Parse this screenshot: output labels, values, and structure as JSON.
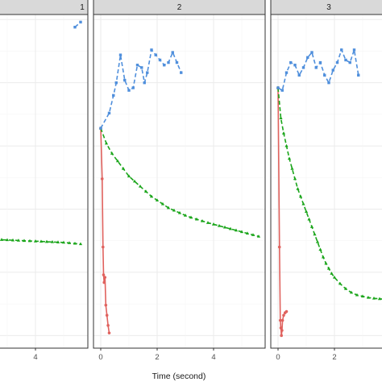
{
  "chart_data": {
    "type": "line",
    "xlabel": "Time (second)",
    "ylabel": "",
    "xlim_note": "shared x scale, each facet clipped",
    "grid": true,
    "legend": "none",
    "colors": {
      "red": "#e0625e",
      "green": "#1aa51a",
      "blue": "#4f8fdc"
    },
    "facets": [
      {
        "label": "1",
        "x_ticks": [
          4
        ],
        "series": [
          {
            "color": "#e0625e",
            "dash": "solid",
            "marker": "dot",
            "points": []
          },
          {
            "color": "#1aa51a",
            "dash": "dashed",
            "marker": "triangle",
            "points": [
              [
                2.6,
                0.38
              ],
              [
                2.8,
                0.379
              ],
              [
                3.0,
                0.378
              ],
              [
                3.2,
                0.377
              ],
              [
                3.4,
                0.376
              ],
              [
                3.6,
                0.375
              ],
              [
                3.8,
                0.374
              ],
              [
                4.0,
                0.373
              ],
              [
                4.2,
                0.372
              ],
              [
                4.4,
                0.371
              ],
              [
                4.6,
                0.37
              ],
              [
                4.8,
                0.369
              ],
              [
                5.0,
                0.368
              ],
              [
                5.2,
                0.366
              ],
              [
                5.4,
                0.364
              ],
              [
                5.6,
                0.362
              ]
            ]
          },
          {
            "color": "#4f8fdc",
            "dash": "dashed",
            "marker": "square",
            "points": [
              [
                5.4,
                1.22
              ],
              [
                5.6,
                1.24
              ]
            ]
          }
        ]
      },
      {
        "label": "2",
        "x_ticks": [
          0,
          2,
          4
        ],
        "series": [
          {
            "color": "#e0625e",
            "dash": "solid",
            "marker": "dot",
            "points": [
              [
                0.0,
                0.82
              ],
              [
                0.05,
                0.62
              ],
              [
                0.08,
                0.35
              ],
              [
                0.1,
                0.24
              ],
              [
                0.12,
                0.21
              ],
              [
                0.15,
                0.23
              ],
              [
                0.18,
                0.12
              ],
              [
                0.22,
                0.08
              ],
              [
                0.26,
                0.04
              ],
              [
                0.3,
                0.01
              ]
            ]
          },
          {
            "color": "#1aa51a",
            "dash": "dashed",
            "marker": "triangle",
            "points": [
              [
                0.0,
                0.82
              ],
              [
                0.2,
                0.76
              ],
              [
                0.4,
                0.72
              ],
              [
                0.6,
                0.69
              ],
              [
                0.8,
                0.66
              ],
              [
                1.0,
                0.63
              ],
              [
                1.2,
                0.61
              ],
              [
                1.4,
                0.59
              ],
              [
                1.6,
                0.57
              ],
              [
                1.8,
                0.55
              ],
              [
                2.0,
                0.535
              ],
              [
                2.2,
                0.52
              ],
              [
                2.4,
                0.505
              ],
              [
                2.6,
                0.495
              ],
              [
                2.8,
                0.485
              ],
              [
                3.0,
                0.475
              ],
              [
                3.2,
                0.467
              ],
              [
                3.4,
                0.46
              ],
              [
                3.6,
                0.453
              ],
              [
                3.8,
                0.446
              ],
              [
                4.0,
                0.44
              ],
              [
                4.2,
                0.434
              ],
              [
                4.4,
                0.428
              ],
              [
                4.6,
                0.422
              ],
              [
                4.8,
                0.416
              ],
              [
                5.0,
                0.41
              ],
              [
                5.2,
                0.404
              ],
              [
                5.4,
                0.398
              ],
              [
                5.6,
                0.392
              ]
            ]
          },
          {
            "color": "#4f8fdc",
            "dash": "dashed",
            "marker": "square",
            "points": [
              [
                0.0,
                0.82
              ],
              [
                0.3,
                0.88
              ],
              [
                0.45,
                0.95
              ],
              [
                0.55,
                1.0
              ],
              [
                0.7,
                1.11
              ],
              [
                0.85,
                1.01
              ],
              [
                1.0,
                0.97
              ],
              [
                1.15,
                0.98
              ],
              [
                1.3,
                1.07
              ],
              [
                1.45,
                1.06
              ],
              [
                1.55,
                1.0
              ],
              [
                1.65,
                1.04
              ],
              [
                1.8,
                1.13
              ],
              [
                1.95,
                1.11
              ],
              [
                2.1,
                1.09
              ],
              [
                2.25,
                1.07
              ],
              [
                2.4,
                1.08
              ],
              [
                2.55,
                1.12
              ],
              [
                2.7,
                1.08
              ],
              [
                2.85,
                1.04
              ]
            ]
          }
        ]
      },
      {
        "label": "3",
        "x_ticks": [
          0,
          2
        ],
        "series": [
          {
            "color": "#e0625e",
            "dash": "solid",
            "marker": "dot",
            "points": [
              [
                0.0,
                0.98
              ],
              [
                0.05,
                0.35
              ],
              [
                0.08,
                0.06
              ],
              [
                0.1,
                0.03
              ],
              [
                0.12,
                0.0
              ],
              [
                0.14,
                0.02
              ],
              [
                0.16,
                0.06
              ],
              [
                0.2,
                0.08
              ],
              [
                0.25,
                0.09
              ],
              [
                0.3,
                0.095
              ]
            ]
          },
          {
            "color": "#1aa51a",
            "dash": "dashed",
            "marker": "triangle",
            "points": [
              [
                0.0,
                0.98
              ],
              [
                0.1,
                0.86
              ],
              [
                0.2,
                0.8
              ],
              [
                0.3,
                0.75
              ],
              [
                0.4,
                0.7
              ],
              [
                0.5,
                0.66
              ],
              [
                0.6,
                0.62
              ],
              [
                0.7,
                0.58
              ],
              [
                0.8,
                0.55
              ],
              [
                0.9,
                0.52
              ],
              [
                1.0,
                0.49
              ],
              [
                1.1,
                0.46
              ],
              [
                1.2,
                0.43
              ],
              [
                1.3,
                0.4
              ],
              [
                1.4,
                0.37
              ],
              [
                1.5,
                0.34
              ],
              [
                1.6,
                0.31
              ],
              [
                1.7,
                0.285
              ],
              [
                1.8,
                0.265
              ],
              [
                1.9,
                0.245
              ],
              [
                2.0,
                0.23
              ],
              [
                2.2,
                0.205
              ],
              [
                2.4,
                0.185
              ],
              [
                2.6,
                0.17
              ],
              [
                2.8,
                0.16
              ],
              [
                3.0,
                0.155
              ],
              [
                3.2,
                0.15
              ],
              [
                3.4,
                0.147
              ],
              [
                3.6,
                0.145
              ],
              [
                3.8,
                0.143
              ]
            ]
          },
          {
            "color": "#4f8fdc",
            "dash": "dashed",
            "marker": "square",
            "points": [
              [
                0.0,
                0.98
              ],
              [
                0.15,
                0.97
              ],
              [
                0.3,
                1.04
              ],
              [
                0.45,
                1.08
              ],
              [
                0.6,
                1.07
              ],
              [
                0.75,
                1.03
              ],
              [
                0.9,
                1.06
              ],
              [
                1.05,
                1.1
              ],
              [
                1.2,
                1.12
              ],
              [
                1.35,
                1.06
              ],
              [
                1.5,
                1.08
              ],
              [
                1.65,
                1.03
              ],
              [
                1.8,
                1.0
              ],
              [
                1.95,
                1.05
              ],
              [
                2.1,
                1.08
              ],
              [
                2.25,
                1.13
              ],
              [
                2.4,
                1.09
              ],
              [
                2.55,
                1.08
              ],
              [
                2.7,
                1.13
              ],
              [
                2.85,
                1.03
              ]
            ]
          }
        ]
      }
    ]
  }
}
